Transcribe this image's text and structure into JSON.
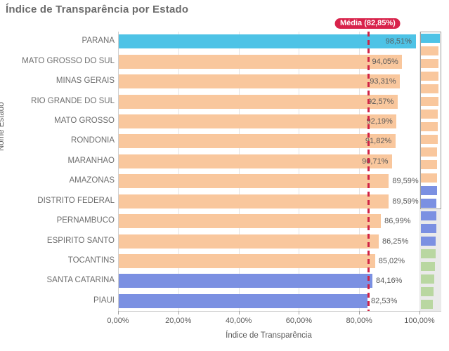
{
  "title": "Índice de Transparência por Estado",
  "chart_data": {
    "type": "bar",
    "orientation": "horizontal",
    "title": "Índice de Transparência por Estado",
    "xlabel": "Índice de Transparência",
    "ylabel": "Nome Estado",
    "xlim": [
      0,
      100
    ],
    "grid": true,
    "x_ticks": [
      {
        "value": 0,
        "label": "0,00%"
      },
      {
        "value": 20,
        "label": "20,00%"
      },
      {
        "value": 40,
        "label": "40,00%"
      },
      {
        "value": 60,
        "label": "60,00%"
      },
      {
        "value": 80,
        "label": "80,00%"
      },
      {
        "value": 100,
        "label": "100,00%"
      }
    ],
    "categories": [
      "PARANA",
      "MATO GROSSO DO SUL",
      "MINAS GERAIS",
      "RIO GRANDE DO SUL",
      "MATO GROSSO",
      "RONDONIA",
      "MARANHAO",
      "AMAZONAS",
      "DISTRITO FEDERAL",
      "PERNAMBUCO",
      "ESPIRITO SANTO",
      "TOCANTINS",
      "SANTA CATARINA",
      "PIAUI"
    ],
    "values": [
      98.51,
      94.05,
      93.31,
      92.57,
      92.19,
      91.82,
      90.71,
      89.59,
      89.59,
      86.99,
      86.25,
      85.02,
      84.16,
      82.53
    ],
    "value_labels": [
      "98,51%",
      "94,05%",
      "93,31%",
      "92,57%",
      "92,19%",
      "91,82%",
      "90,71%",
      "89,59%",
      "89,59%",
      "86,99%",
      "86,25%",
      "85,02%",
      "84,16%",
      "82,53%"
    ],
    "bar_colors": [
      "#4ec3e6",
      "#f9c79d",
      "#f9c79d",
      "#f9c79d",
      "#f9c79d",
      "#f9c79d",
      "#f9c79d",
      "#f9c79d",
      "#f9c79d",
      "#f9c79d",
      "#f9c79d",
      "#f9c79d",
      "#7b90e2",
      "#7b90e2"
    ],
    "value_label_placement": [
      "inside",
      "inside",
      "inside",
      "inside",
      "inside",
      "inside",
      "inside",
      "outside",
      "outside",
      "outside",
      "outside",
      "outside",
      "outside",
      "outside"
    ],
    "mean_line": {
      "value": 82.85,
      "label": "Média (82,85%)",
      "line_color": "#d02346",
      "badge_color": "#d8234b"
    }
  },
  "minimap": {
    "visible_rows": 14,
    "bars": [
      {
        "value": 98.51,
        "color": "#4ec3e6"
      },
      {
        "value": 94.05,
        "color": "#f9c79d"
      },
      {
        "value": 93.31,
        "color": "#f9c79d"
      },
      {
        "value": 92.57,
        "color": "#f9c79d"
      },
      {
        "value": 92.19,
        "color": "#f9c79d"
      },
      {
        "value": 91.82,
        "color": "#f9c79d"
      },
      {
        "value": 90.71,
        "color": "#f9c79d"
      },
      {
        "value": 89.59,
        "color": "#f9c79d"
      },
      {
        "value": 89.59,
        "color": "#f9c79d"
      },
      {
        "value": 86.99,
        "color": "#f9c79d"
      },
      {
        "value": 86.25,
        "color": "#f9c79d"
      },
      {
        "value": 85.02,
        "color": "#f9c79d"
      },
      {
        "value": 84.16,
        "color": "#7b90e2"
      },
      {
        "value": 82.53,
        "color": "#7b90e2"
      },
      {
        "value": 81.5,
        "color": "#7b90e2"
      },
      {
        "value": 80.5,
        "color": "#7b90e2"
      },
      {
        "value": 79.5,
        "color": "#7b90e2"
      },
      {
        "value": 76.0,
        "color": "#b9d7a1"
      },
      {
        "value": 73.0,
        "color": "#b9d7a1"
      },
      {
        "value": 70.0,
        "color": "#b9d7a1"
      },
      {
        "value": 66.0,
        "color": "#b9d7a1"
      },
      {
        "value": 62.0,
        "color": "#b9d7a1"
      }
    ]
  },
  "colors": {
    "title_text": "#6b6b6b",
    "axis_text": "#595959",
    "category_text": "#6e6e6e",
    "gridline": "#e3e3e3",
    "axis_line": "#cfcfcf",
    "bar_cyan": "#4ec3e6",
    "bar_orange": "#f9c79d",
    "bar_blue": "#7b90e2",
    "bar_green": "#b9d7a1",
    "mean_red": "#d02346"
  }
}
